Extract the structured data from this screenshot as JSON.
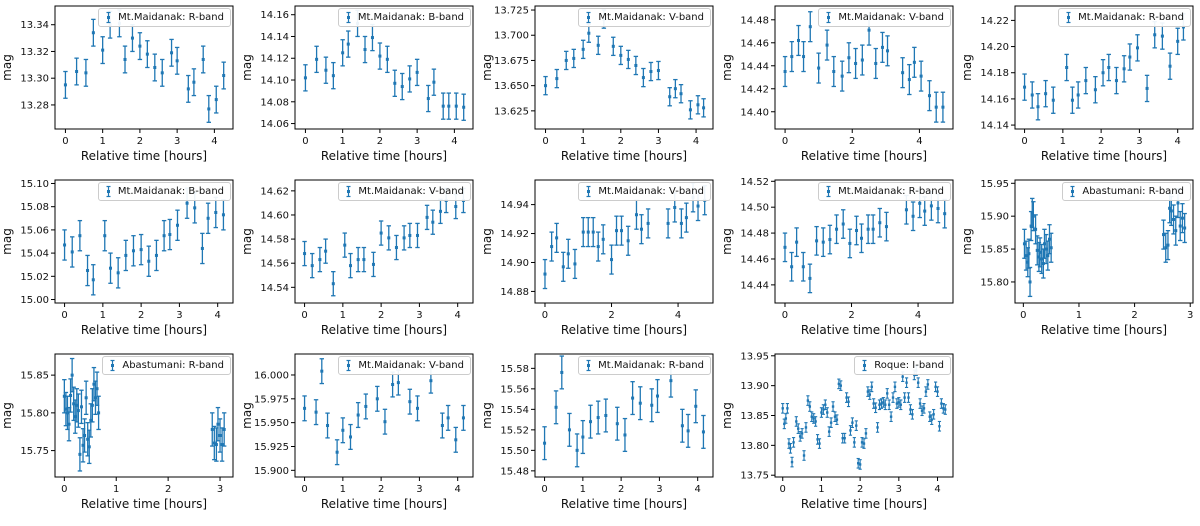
{
  "chart_data": {
    "type": "scatter",
    "style": "errorbar light curves",
    "layout": {
      "rows": 3,
      "cols": 5,
      "num_plots": 14,
      "grid": "off",
      "legend_position": "upper right"
    },
    "xlabel": "Relative time [hours]",
    "ylabel": "mag",
    "marker_color": "#1f77b4",
    "frame_color": "#000000",
    "plots": [
      {
        "legend": "Mt.Maidanak: R-band",
        "xticks": [
          "0",
          "1",
          "2",
          "3",
          "4"
        ],
        "xlim": [
          -0.28,
          4.5
        ],
        "yticks": [
          "13.28",
          "13.30",
          "13.32",
          "13.34"
        ],
        "ylim": [
          13.262,
          13.354
        ],
        "yerr": 0.01,
        "x": [
          0,
          0.3,
          0.55,
          0.75,
          1.0,
          1.2,
          1.45,
          1.6,
          1.8,
          2.0,
          2.2,
          2.4,
          2.6,
          2.85,
          3.0,
          3.3,
          3.45,
          3.7,
          3.85,
          4.05,
          4.25
        ],
        "y": [
          13.295,
          13.305,
          13.304,
          13.334,
          13.321,
          13.34,
          13.341,
          13.314,
          13.33,
          13.324,
          13.318,
          13.308,
          13.304,
          13.319,
          13.313,
          13.292,
          13.297,
          13.314,
          13.277,
          13.284,
          13.302
        ]
      },
      {
        "legend": "Mt.Maidanak: B-band",
        "xticks": [
          "0",
          "1",
          "2",
          "3",
          "4"
        ],
        "xlim": [
          -0.28,
          4.5
        ],
        "yticks": [
          "14.06",
          "14.08",
          "14.10",
          "14.12",
          "14.14",
          "14.16"
        ],
        "ylim": [
          14.055,
          14.168
        ],
        "yerr": 0.012,
        "x": [
          0,
          0.3,
          0.55,
          0.75,
          1.0,
          1.15,
          1.4,
          1.6,
          1.8,
          2.0,
          2.2,
          2.4,
          2.6,
          2.8,
          3.0,
          3.3,
          3.45,
          3.7,
          3.85,
          4.05,
          4.25
        ],
        "y": [
          14.102,
          14.119,
          14.109,
          14.104,
          14.125,
          14.133,
          14.152,
          14.128,
          14.139,
          14.122,
          14.119,
          14.097,
          14.094,
          14.101,
          14.107,
          14.083,
          14.098,
          14.076,
          14.076,
          14.076,
          14.075
        ]
      },
      {
        "legend": "Mt.Maidanak: V-band",
        "xticks": [
          "0",
          "1",
          "2",
          "3",
          "4"
        ],
        "xlim": [
          -0.28,
          4.45
        ],
        "yticks": [
          "13.625",
          "13.650",
          "13.675",
          "13.700",
          "13.725"
        ],
        "ylim": [
          13.607,
          13.729
        ],
        "yerr": 0.009,
        "x": [
          0,
          0.3,
          0.55,
          0.75,
          1.0,
          1.15,
          1.4,
          1.55,
          1.8,
          2.0,
          2.2,
          2.4,
          2.6,
          2.8,
          3.0,
          3.3,
          3.45,
          3.6,
          3.85,
          4.05,
          4.2
        ],
        "y": [
          13.65,
          13.657,
          13.675,
          13.677,
          13.686,
          13.702,
          13.69,
          13.716,
          13.689,
          13.68,
          13.676,
          13.67,
          13.658,
          13.664,
          13.665,
          13.639,
          13.647,
          13.642,
          13.626,
          13.631,
          13.628
        ]
      },
      {
        "legend": "Mt.Maidanak: V-band",
        "xticks": [
          "0",
          "2",
          "4"
        ],
        "xlim": [
          -0.3,
          5.0
        ],
        "yticks": [
          "14.40",
          "14.42",
          "14.44",
          "14.46",
          "14.48"
        ],
        "ylim": [
          14.385,
          14.492
        ],
        "yerr": 0.013,
        "x": [
          0,
          0.2,
          0.4,
          0.55,
          0.75,
          1.0,
          1.25,
          1.45,
          1.7,
          1.9,
          2.1,
          2.3,
          2.5,
          2.7,
          2.9,
          3.05,
          3.5,
          3.7,
          3.85,
          4.05,
          4.3,
          4.5,
          4.7
        ],
        "y": [
          14.435,
          14.448,
          14.462,
          14.448,
          14.474,
          14.438,
          14.458,
          14.435,
          14.431,
          14.447,
          14.442,
          14.445,
          14.471,
          14.442,
          14.456,
          14.453,
          14.434,
          14.428,
          14.443,
          14.431,
          14.414,
          14.404,
          14.404
        ]
      },
      {
        "legend": "Mt.Maidanak: R-band",
        "xticks": [
          "0",
          "1",
          "2",
          "3",
          "4"
        ],
        "xlim": [
          -0.25,
          4.4
        ],
        "yticks": [
          "14.14",
          "14.16",
          "14.18",
          "14.20",
          "14.22"
        ],
        "ylim": [
          14.137,
          14.231
        ],
        "yerr": 0.01,
        "x": [
          0,
          0.2,
          0.35,
          0.55,
          0.75,
          1.1,
          1.25,
          1.4,
          1.6,
          1.85,
          2.05,
          2.2,
          2.4,
          2.6,
          2.75,
          2.95,
          3.2,
          3.4,
          3.6,
          3.8,
          4.0,
          4.15
        ],
        "y": [
          14.169,
          14.163,
          14.154,
          14.164,
          14.159,
          14.184,
          14.159,
          14.163,
          14.174,
          14.167,
          14.18,
          14.184,
          14.174,
          14.183,
          14.192,
          14.199,
          14.168,
          14.209,
          14.208,
          14.185,
          14.204,
          14.215
        ]
      },
      {
        "legend": "Mt.Maidanak: B-band",
        "xticks": [
          "0",
          "1",
          "2",
          "3",
          "4"
        ],
        "xlim": [
          -0.25,
          4.4
        ],
        "yticks": [
          "15.00",
          "15.02",
          "15.04",
          "15.06",
          "15.08",
          "15.10"
        ],
        "ylim": [
          14.997,
          15.103
        ],
        "yerr": 0.013,
        "x": [
          0,
          0.2,
          0.4,
          0.6,
          0.75,
          1.05,
          1.2,
          1.4,
          1.6,
          1.8,
          2.0,
          2.2,
          2.4,
          2.6,
          2.75,
          2.95,
          3.2,
          3.4,
          3.6,
          3.75,
          3.95,
          4.15
        ],
        "y": [
          15.047,
          15.041,
          15.055,
          15.025,
          15.017,
          15.055,
          15.027,
          15.023,
          15.038,
          15.042,
          15.043,
          15.033,
          15.038,
          15.055,
          15.056,
          15.064,
          15.083,
          15.079,
          15.044,
          15.07,
          15.075,
          15.073
        ]
      },
      {
        "legend": "Mt.Maidanak: V-band",
        "xticks": [
          "0",
          "1",
          "2",
          "3",
          "4"
        ],
        "xlim": [
          -0.25,
          4.4
        ],
        "yticks": [
          "14.54",
          "14.56",
          "14.58",
          "14.60",
          "14.62"
        ],
        "ylim": [
          14.527,
          14.629
        ],
        "yerr": 0.01,
        "x": [
          0,
          0.2,
          0.4,
          0.55,
          0.75,
          1.05,
          1.2,
          1.4,
          1.55,
          1.8,
          2.0,
          2.2,
          2.4,
          2.6,
          2.75,
          2.95,
          3.2,
          3.35,
          3.55,
          3.7,
          3.95,
          4.15
        ],
        "y": [
          14.568,
          14.558,
          14.563,
          14.57,
          14.543,
          14.575,
          14.558,
          14.563,
          14.563,
          14.559,
          14.585,
          14.581,
          14.573,
          14.581,
          14.583,
          14.583,
          14.598,
          14.594,
          14.603,
          14.612,
          14.607,
          14.612
        ]
      },
      {
        "legend": "Mt.Maidanak: V-band",
        "xticks": [
          "0",
          "2",
          "4"
        ],
        "xlim": [
          -0.3,
          5.05
        ],
        "yticks": [
          "14.88",
          "14.90",
          "14.92",
          "14.94"
        ],
        "ylim": [
          14.872,
          14.957
        ],
        "yerr": 0.01,
        "x": [
          0,
          0.2,
          0.35,
          0.55,
          0.7,
          0.9,
          1.15,
          1.3,
          1.45,
          1.6,
          1.75,
          2.0,
          2.15,
          2.3,
          2.5,
          2.75,
          2.9,
          3.1,
          3.7,
          3.9,
          4.1,
          4.25,
          4.45,
          4.6,
          4.8
        ],
        "y": [
          14.892,
          14.911,
          14.917,
          14.897,
          14.906,
          14.899,
          14.921,
          14.921,
          14.921,
          14.911,
          14.916,
          14.902,
          14.922,
          14.922,
          14.915,
          14.933,
          14.923,
          14.927,
          14.927,
          14.938,
          14.927,
          14.931,
          14.945,
          14.939,
          14.943
        ]
      },
      {
        "legend": "Mt.Maidanak: R-band",
        "xticks": [
          "0",
          "2",
          "4"
        ],
        "xlim": [
          -0.3,
          5.05
        ],
        "yticks": [
          "14.44",
          "14.46",
          "14.48",
          "14.50",
          "14.52"
        ],
        "ylim": [
          14.426,
          14.521
        ],
        "yerr": 0.011,
        "x": [
          0,
          0.2,
          0.35,
          0.55,
          0.75,
          0.95,
          1.15,
          1.35,
          1.55,
          1.75,
          1.95,
          2.15,
          2.3,
          2.5,
          2.65,
          2.85,
          3.05,
          3.65,
          3.85,
          4.05,
          4.2,
          4.4,
          4.6,
          4.8
        ],
        "y": [
          14.469,
          14.454,
          14.473,
          14.454,
          14.445,
          14.474,
          14.473,
          14.475,
          14.483,
          14.487,
          14.472,
          14.482,
          14.476,
          14.483,
          14.483,
          14.488,
          14.485,
          14.498,
          14.493,
          14.503,
          14.497,
          14.501,
          14.499,
          14.495
        ]
      },
      {
        "legend": "Abastumani: R-band",
        "xticks": [
          "0",
          "1",
          "2",
          "3"
        ],
        "xlim": [
          -0.15,
          3.05
        ],
        "yticks": [
          "15.80",
          "15.85",
          "15.90",
          "15.95"
        ],
        "ylim": [
          15.768,
          15.955
        ],
        "yerr": 0.022,
        "x": [
          0.02,
          0.05,
          0.08,
          0.1,
          0.12,
          0.14,
          0.16,
          0.18,
          0.22,
          0.25,
          0.28,
          0.3,
          0.33,
          0.36,
          0.38,
          0.41,
          0.44,
          0.47,
          0.5,
          2.52,
          2.56,
          2.6,
          2.63,
          2.66,
          2.7,
          2.74,
          2.78,
          2.82,
          2.86,
          2.9
        ],
        "y": [
          15.858,
          15.84,
          15.83,
          15.843,
          15.8,
          15.885,
          15.905,
          15.9,
          15.88,
          15.848,
          15.838,
          15.845,
          15.835,
          15.828,
          15.858,
          15.85,
          15.84,
          15.865,
          15.852,
          15.872,
          15.852,
          15.856,
          15.912,
          15.908,
          15.895,
          15.878,
          15.92,
          15.885,
          15.897,
          15.882
        ]
      },
      {
        "legend": "Abastumani: R-band",
        "xticks": [
          "0",
          "1",
          "2",
          "3"
        ],
        "xlim": [
          -0.18,
          3.25
        ],
        "yticks": [
          "15.75",
          "15.80",
          "15.85"
        ],
        "ylim": [
          15.715,
          15.878
        ],
        "yerr": 0.022,
        "x": [
          0.0,
          0.03,
          0.06,
          0.09,
          0.12,
          0.15,
          0.18,
          0.21,
          0.24,
          0.27,
          0.3,
          0.33,
          0.36,
          0.39,
          0.42,
          0.45,
          0.48,
          0.51,
          0.54,
          0.57,
          0.6,
          0.63,
          0.66,
          2.85,
          2.89,
          2.93,
          2.96,
          3.0,
          3.04,
          3.08
        ],
        "y": [
          15.822,
          15.805,
          15.8,
          15.785,
          15.823,
          15.85,
          15.812,
          15.795,
          15.81,
          15.803,
          15.745,
          15.808,
          15.757,
          15.77,
          15.82,
          15.765,
          15.755,
          15.79,
          15.81,
          15.838,
          15.82,
          15.832,
          15.8,
          15.778,
          15.76,
          15.758,
          15.785,
          15.77,
          15.758,
          15.778
        ]
      },
      {
        "legend": "Mt.Maidanak: V-band",
        "xticks": [
          "0",
          "1",
          "2",
          "3",
          "4"
        ],
        "xlim": [
          -0.25,
          4.4
        ],
        "yticks": [
          "15.900",
          "15.925",
          "15.950",
          "15.975",
          "16.000"
        ],
        "ylim": [
          15.893,
          16.022
        ],
        "yerr": 0.013,
        "x": [
          0,
          0.3,
          0.45,
          0.6,
          0.85,
          1.0,
          1.2,
          1.4,
          1.6,
          1.9,
          2.1,
          2.3,
          2.45,
          2.75,
          2.95,
          3.3,
          3.6,
          3.75,
          3.95,
          4.15
        ],
        "y": [
          15.965,
          15.961,
          16.004,
          15.947,
          15.919,
          15.942,
          15.935,
          15.958,
          15.967,
          15.975,
          15.951,
          15.99,
          15.992,
          15.972,
          15.965,
          15.994,
          15.947,
          15.955,
          15.932,
          15.955
        ]
      },
      {
        "legend": "Mt.Maidanak: R-band",
        "xticks": [
          "0",
          "1",
          "2",
          "3",
          "4"
        ],
        "xlim": [
          -0.25,
          4.4
        ],
        "yticks": [
          "15.48",
          "15.50",
          "15.52",
          "15.54",
          "15.56",
          "15.58"
        ],
        "ylim": [
          15.474,
          15.594
        ],
        "yerr": 0.016,
        "x": [
          0,
          0.3,
          0.45,
          0.65,
          0.85,
          1.0,
          1.2,
          1.4,
          1.6,
          1.9,
          2.1,
          2.3,
          2.5,
          2.8,
          2.95,
          3.3,
          3.6,
          3.75,
          3.95,
          4.15
        ],
        "y": [
          15.507,
          15.542,
          15.576,
          15.52,
          15.5,
          15.513,
          15.528,
          15.532,
          15.534,
          15.526,
          15.515,
          15.551,
          15.546,
          15.544,
          15.553,
          15.568,
          15.524,
          15.519,
          15.543,
          15.518
        ]
      },
      {
        "legend": "Roque: I-band",
        "xticks": [
          "0",
          "1",
          "2",
          "3",
          "4"
        ],
        "xlim": [
          -0.2,
          4.4
        ],
        "yticks": [
          "13.75",
          "13.80",
          "13.85",
          "13.90",
          "13.95"
        ],
        "ylim": [
          13.747,
          13.953
        ],
        "yerr": 0.008,
        "x": [
          0.0,
          0.04,
          0.08,
          0.12,
          0.16,
          0.2,
          0.24,
          0.28,
          0.35,
          0.4,
          0.45,
          0.5,
          0.55,
          0.6,
          0.65,
          0.7,
          0.75,
          0.8,
          0.85,
          0.9,
          0.95,
          1.0,
          1.05,
          1.1,
          1.15,
          1.2,
          1.25,
          1.3,
          1.35,
          1.4,
          1.45,
          1.5,
          1.55,
          1.6,
          1.65,
          1.7,
          1.75,
          1.8,
          1.85,
          1.9,
          1.95,
          2.0,
          2.05,
          2.1,
          2.15,
          2.2,
          2.25,
          2.3,
          2.35,
          2.4,
          2.45,
          2.5,
          2.55,
          2.6,
          2.65,
          2.7,
          2.75,
          2.8,
          2.85,
          2.9,
          2.95,
          3.0,
          3.05,
          3.1,
          3.15,
          3.2,
          3.25,
          3.3,
          3.35,
          3.4,
          3.45,
          3.5,
          3.55,
          3.6,
          3.65,
          3.7,
          3.75,
          3.8,
          3.85,
          3.9,
          3.95,
          4.0,
          4.05,
          4.1,
          4.15,
          4.2
        ],
        "y": [
          13.862,
          13.836,
          13.845,
          13.862,
          13.803,
          13.795,
          13.772,
          13.805,
          13.84,
          13.828,
          13.815,
          13.82,
          13.783,
          13.83,
          13.875,
          13.865,
          13.848,
          13.845,
          13.84,
          13.81,
          13.803,
          13.855,
          13.86,
          13.868,
          13.855,
          13.823,
          13.838,
          13.865,
          13.848,
          13.843,
          13.903,
          13.9,
          13.812,
          13.812,
          13.88,
          13.873,
          13.825,
          13.838,
          13.805,
          13.833,
          13.77,
          13.768,
          13.805,
          13.803,
          13.82,
          13.89,
          13.885,
          13.898,
          13.87,
          13.863,
          13.83,
          13.868,
          13.87,
          13.872,
          13.868,
          13.887,
          13.868,
          13.848,
          13.88,
          13.898,
          13.87,
          13.872,
          13.868,
          13.915,
          13.88,
          13.905,
          13.88,
          13.86,
          13.852,
          13.918,
          13.925,
          13.905,
          13.87,
          13.858,
          13.862,
          13.89,
          13.902,
          13.848,
          13.843,
          13.852,
          13.898,
          13.89,
          13.832,
          13.87,
          13.862,
          13.86
        ]
      }
    ]
  }
}
